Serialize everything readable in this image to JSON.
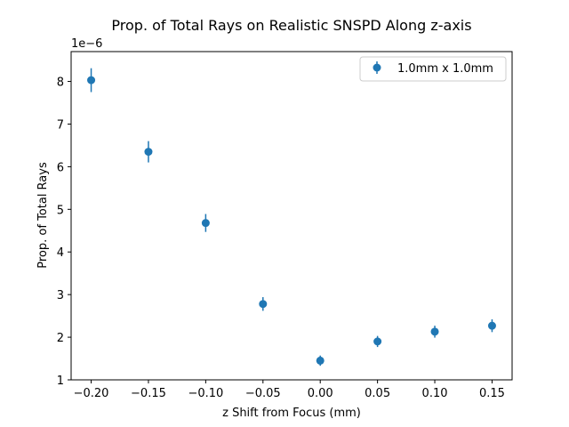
{
  "chart_data": {
    "type": "scatter",
    "title": "Prop. of Total Rays on Realistic SNSPD Along z-axis",
    "xlabel": "z Shift from Focus (mm)",
    "ylabel": "Prop. of Total Rays",
    "y_scale_label": "1e−6",
    "xlim": [
      -0.2175,
      0.1675
    ],
    "ylim": [
      1.0,
      8.7
    ],
    "x_ticks": [
      -0.2,
      -0.15,
      -0.1,
      -0.05,
      0.0,
      0.05,
      0.1,
      0.15
    ],
    "x_tick_labels": [
      "−0.20",
      "−0.15",
      "−0.10",
      "−0.05",
      "0.00",
      "0.05",
      "0.10",
      "0.15"
    ],
    "y_ticks": [
      1,
      2,
      3,
      4,
      5,
      6,
      7,
      8
    ],
    "y_tick_labels": [
      "1",
      "2",
      "3",
      "4",
      "5",
      "6",
      "7",
      "8"
    ],
    "grid": false,
    "legend_position": "top-right",
    "series": [
      {
        "name": "1.0mm x 1.0mm",
        "color": "#1f77b4",
        "marker": "circle",
        "x": [
          -0.2,
          -0.15,
          -0.1,
          -0.05,
          0.0,
          0.05,
          0.1,
          0.15
        ],
        "y": [
          8.03,
          6.35,
          4.68,
          2.78,
          1.45,
          1.9,
          2.13,
          2.27
        ],
        "yerr": [
          0.28,
          0.25,
          0.21,
          0.16,
          0.12,
          0.13,
          0.14,
          0.15
        ]
      }
    ]
  }
}
